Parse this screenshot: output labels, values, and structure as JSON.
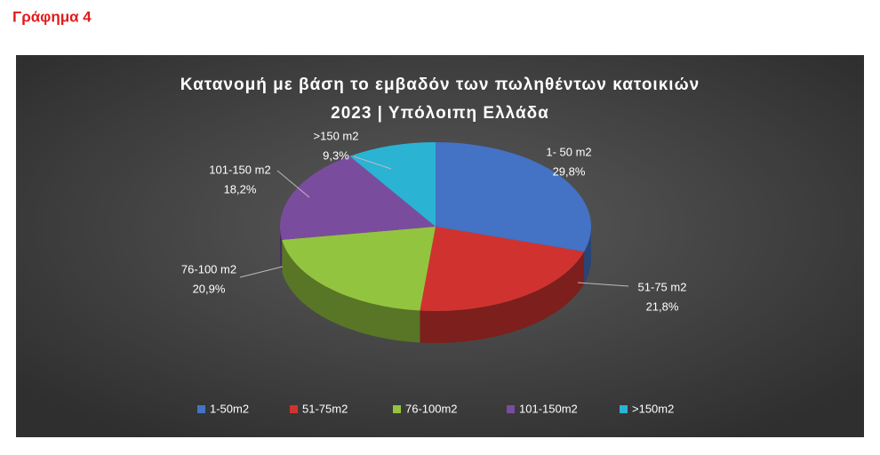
{
  "heading": "Γράφημα 4",
  "chart_data": {
    "type": "pie3d",
    "title": [
      "Κατανομή με βάση το εμβαδόν των πωληθέντων κατοικιών",
      "2023 | Υπόλοιπη Ελλάδα"
    ],
    "categories": [
      "1-50m2",
      "51-75m2",
      "76-100m2",
      "101-150m2",
      ">150m2"
    ],
    "category_labels": [
      "1- 50 m2",
      "51-75 m2",
      "76-100 m2",
      "101-150 m2",
      ">150 m2"
    ],
    "values": [
      29.8,
      21.8,
      20.9,
      18.2,
      9.3
    ],
    "value_labels": [
      "29,8%",
      "21,8%",
      "20,9%",
      "18,2%",
      "9,3%"
    ],
    "colors": [
      "#4472c4",
      "#d0332f",
      "#93c43f",
      "#7a4c9e",
      "#2bb3d4"
    ],
    "legend": "bottom"
  }
}
